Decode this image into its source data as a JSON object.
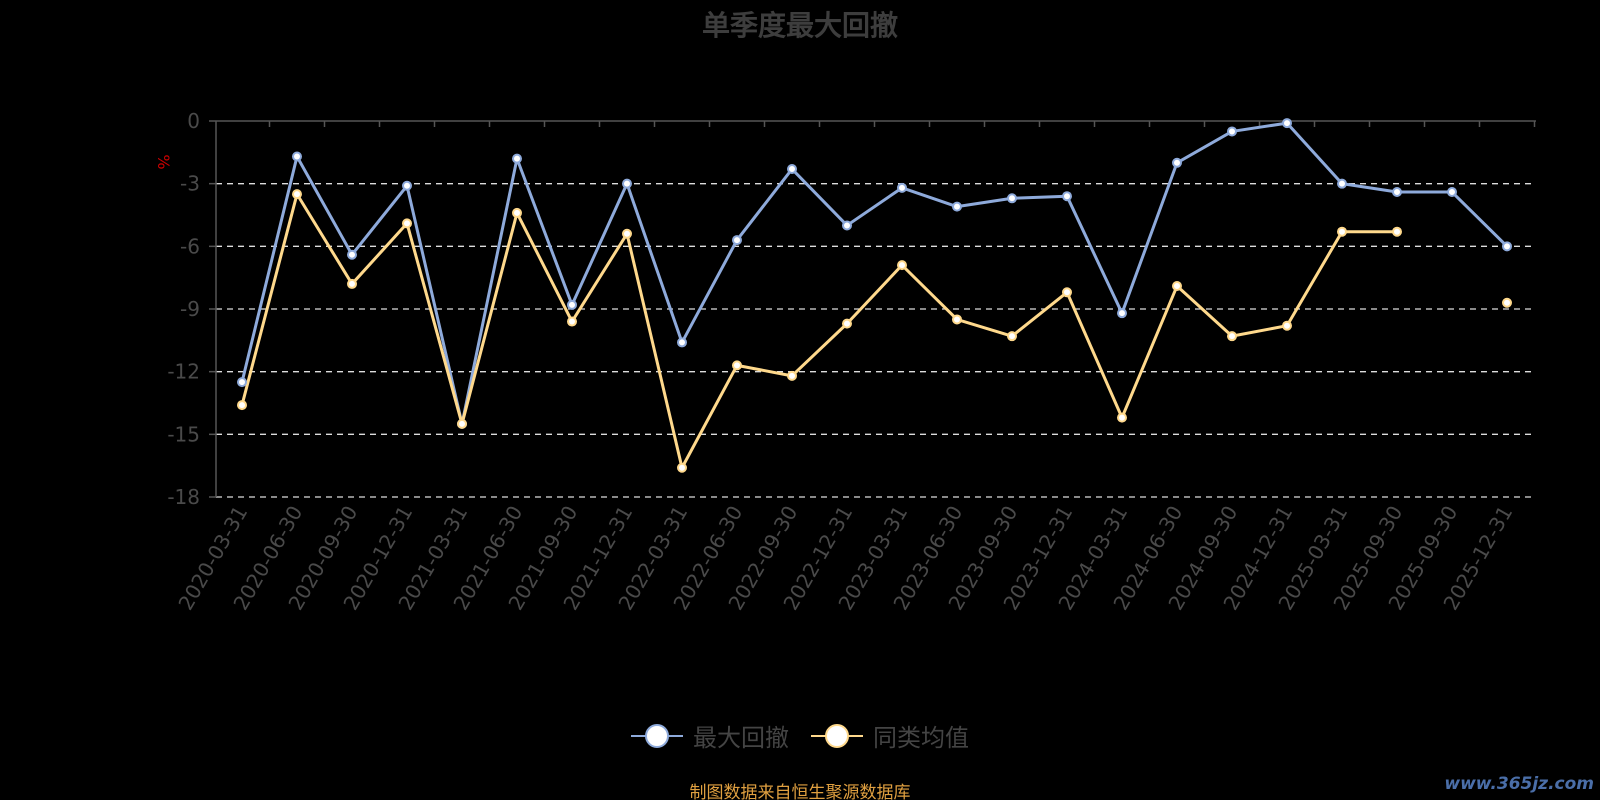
{
  "chart_data": {
    "type": "line",
    "title": "单季度最大回撤",
    "ylabel": "%",
    "xlabel": "",
    "ylim": [
      -18,
      0
    ],
    "yticks": [
      0,
      -3,
      -6,
      -9,
      -12,
      -15,
      -18
    ],
    "grid": "horizontal dashed",
    "legend_position": "bottom",
    "categories": [
      "2020-03-31",
      "2020-06-30",
      "2020-09-30",
      "2020-12-31",
      "2021-03-31",
      "2021-06-30",
      "2021-09-30",
      "2021-12-31",
      "2022-03-31",
      "2022-06-30",
      "2022-09-30",
      "2022-12-31",
      "2023-03-31",
      "2023-06-30",
      "2023-09-30",
      "2023-12-31",
      "2024-03-31",
      "2024-06-30",
      "2024-09-30",
      "2024-12-31",
      "2025-03-31",
      "2025-09-30",
      "2025-09-30",
      "2025-12-31"
    ],
    "series": [
      {
        "name": "最大回撤",
        "color": "#8eaadb",
        "values": [
          -12.5,
          -1.7,
          -6.4,
          -3.1,
          -14.5,
          -1.8,
          -8.8,
          -3.0,
          -10.6,
          -5.7,
          -2.3,
          -5.0,
          -3.2,
          -4.1,
          -3.7,
          -3.6,
          -9.2,
          -2.0,
          -0.5,
          -0.1,
          -3.0,
          -3.4,
          -3.4,
          -6.0
        ]
      },
      {
        "name": "同类均值",
        "color": "#ffd98c",
        "values": [
          -13.6,
          -3.5,
          -7.8,
          -4.9,
          -14.5,
          -4.4,
          -9.6,
          -5.4,
          -16.6,
          -11.7,
          -12.2,
          -9.7,
          -6.9,
          -9.5,
          -10.3,
          -8.2,
          -14.2,
          -7.9,
          -10.3,
          -9.8,
          -5.3,
          -5.3,
          null,
          -8.7
        ]
      }
    ]
  },
  "source_note": "制图数据来自恒生聚源数据库",
  "watermark": "www.365jz.com",
  "colors": {
    "background": "#000000",
    "axis": "#555555",
    "grid": "#dddddd",
    "tick_label": "#4a4a4a",
    "ylabel": "#cc0000",
    "source_note": "#e0a040"
  }
}
